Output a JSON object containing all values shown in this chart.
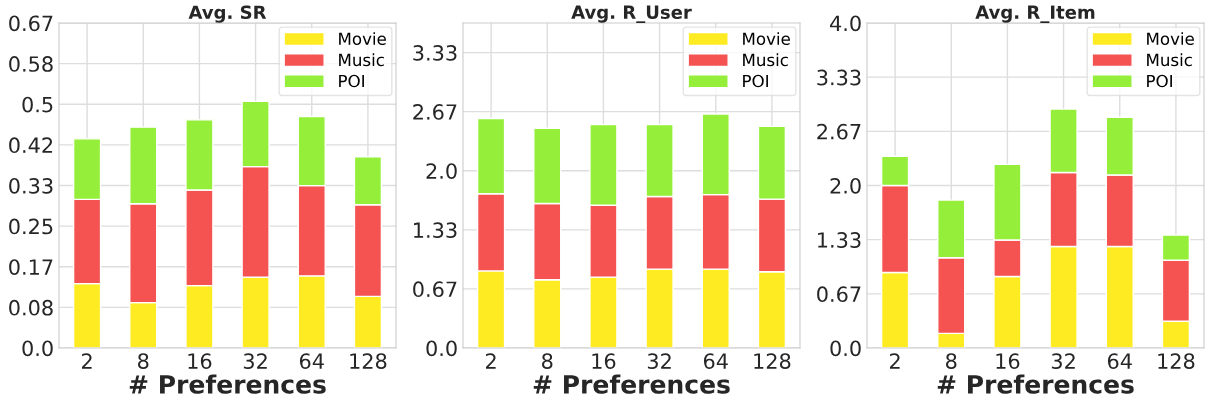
{
  "chart_data": [
    {
      "type": "bar",
      "title": "Avg. SR",
      "xlabel": "# Preferences",
      "categories": [
        "2",
        "8",
        "16",
        "32",
        "64",
        "128"
      ],
      "stacked": true,
      "grid": true,
      "legend": "top right",
      "ylim": [
        0,
        0.6667
      ],
      "yticks": [
        {
          "value": 0,
          "label": "0.0"
        },
        {
          "value": 0.0833,
          "label": "0.08"
        },
        {
          "value": 0.1667,
          "label": "0.17"
        },
        {
          "value": 0.25,
          "label": "0.25"
        },
        {
          "value": 0.3333,
          "label": "0.33"
        },
        {
          "value": 0.4167,
          "label": "0.42"
        },
        {
          "value": 0.5,
          "label": "0.5"
        },
        {
          "value": 0.5833,
          "label": "0.58"
        },
        {
          "value": 0.6667,
          "label": "0.67"
        }
      ],
      "series": [
        {
          "name": "Movie",
          "color": "#ffeb22",
          "values": [
            0.132,
            0.093,
            0.128,
            0.145,
            0.148,
            0.106
          ]
        },
        {
          "name": "Music",
          "color": "#f55252",
          "values": [
            0.173,
            0.203,
            0.196,
            0.227,
            0.185,
            0.188
          ]
        },
        {
          "name": "POI",
          "color": "#95ef3a",
          "values": [
            0.124,
            0.157,
            0.144,
            0.134,
            0.142,
            0.098
          ]
        }
      ]
    },
    {
      "type": "bar",
      "title": "Avg. R_User",
      "xlabel": "# Preferences",
      "categories": [
        "2",
        "8",
        "16",
        "32",
        "64",
        "128"
      ],
      "stacked": true,
      "grid": true,
      "legend": "top right",
      "ylim": [
        0,
        3.667
      ],
      "yticks": [
        {
          "value": 0,
          "label": "0.0"
        },
        {
          "value": 0.6667,
          "label": "0.67"
        },
        {
          "value": 1.3333,
          "label": "1.33"
        },
        {
          "value": 2.0,
          "label": "2.0"
        },
        {
          "value": 2.6667,
          "label": "2.67"
        },
        {
          "value": 3.3333,
          "label": "3.33"
        }
      ],
      "series": [
        {
          "name": "Movie",
          "color": "#ffeb22",
          "values": [
            0.87,
            0.77,
            0.8,
            0.89,
            0.89,
            0.86
          ]
        },
        {
          "name": "Music",
          "color": "#f55252",
          "values": [
            0.87,
            0.86,
            0.81,
            0.82,
            0.84,
            0.82
          ]
        },
        {
          "name": "POI",
          "color": "#95ef3a",
          "values": [
            0.85,
            0.85,
            0.91,
            0.81,
            0.91,
            0.82
          ]
        }
      ]
    },
    {
      "type": "bar",
      "title": "Avg. R_Item",
      "xlabel": "# Preferences",
      "categories": [
        "2",
        "8",
        "16",
        "32",
        "64",
        "128"
      ],
      "stacked": true,
      "grid": true,
      "legend": "top right",
      "ylim": [
        0,
        4.0
      ],
      "yticks": [
        {
          "value": 0,
          "label": "0.0"
        },
        {
          "value": 0.6667,
          "label": "0.67"
        },
        {
          "value": 1.3333,
          "label": "1.33"
        },
        {
          "value": 2.0,
          "label": "2.0"
        },
        {
          "value": 2.6667,
          "label": "2.67"
        },
        {
          "value": 3.3333,
          "label": "3.33"
        },
        {
          "value": 4.0,
          "label": "4.0"
        }
      ],
      "series": [
        {
          "name": "Movie",
          "color": "#ffeb22",
          "values": [
            0.93,
            0.18,
            0.88,
            1.25,
            1.25,
            0.33
          ]
        },
        {
          "name": "Music",
          "color": "#f55252",
          "values": [
            1.07,
            0.93,
            0.45,
            0.91,
            0.88,
            0.75
          ]
        },
        {
          "name": "POI",
          "color": "#95ef3a",
          "values": [
            0.36,
            0.71,
            0.93,
            0.78,
            0.71,
            0.31
          ]
        }
      ]
    }
  ]
}
